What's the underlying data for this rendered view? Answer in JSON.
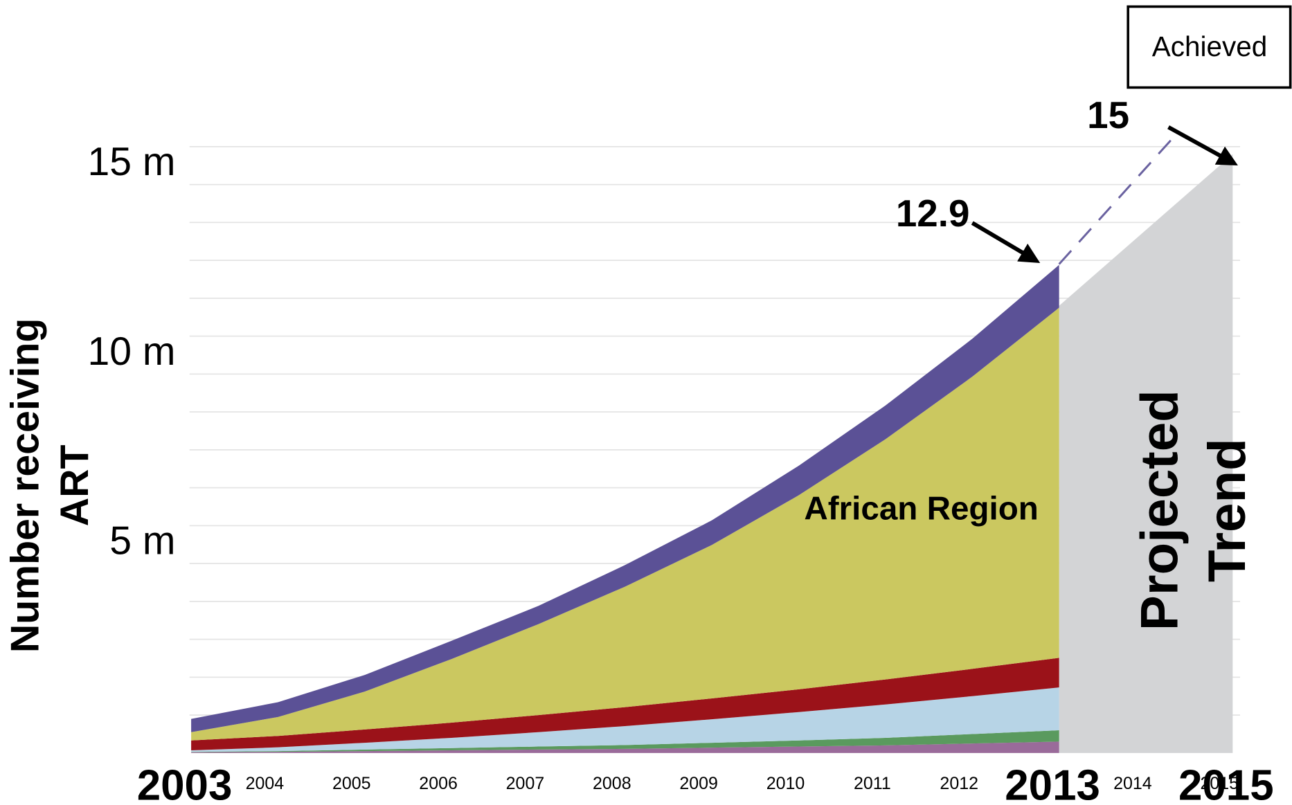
{
  "chart_data": {
    "type": "stacked_area",
    "x": [
      2003,
      2004,
      2005,
      2006,
      2007,
      2008,
      2009,
      2010,
      2011,
      2012,
      2013
    ],
    "series": [
      {
        "color": "#9a6b9a",
        "values": [
          0.02,
          0.03,
          0.05,
          0.07,
          0.09,
          0.11,
          0.14,
          0.17,
          0.2,
          0.25,
          0.3
        ]
      },
      {
        "color": "#5a9a5e",
        "values": [
          0.01,
          0.02,
          0.04,
          0.06,
          0.08,
          0.1,
          0.13,
          0.16,
          0.2,
          0.25,
          0.3
        ]
      },
      {
        "color": "#b7d4e6",
        "values": [
          0.04,
          0.1,
          0.18,
          0.27,
          0.38,
          0.5,
          0.62,
          0.75,
          0.88,
          1.0,
          1.13
        ]
      },
      {
        "color": "#9b1219",
        "values": [
          0.26,
          0.3,
          0.35,
          0.4,
          0.45,
          0.5,
          0.55,
          0.6,
          0.66,
          0.72,
          0.78
        ]
      },
      {
        "name": "African Region",
        "color": "#cbc860",
        "values": [
          0.22,
          0.5,
          1.0,
          1.68,
          2.4,
          3.18,
          4.05,
          5.12,
          6.34,
          7.71,
          9.24
        ]
      },
      {
        "color": "#5b5196",
        "values": [
          0.35,
          0.39,
          0.44,
          0.48,
          0.48,
          0.57,
          0.65,
          0.78,
          0.89,
          1.0,
          1.13
        ]
      }
    ],
    "projected": {
      "label": [
        "Projected",
        "Trend"
      ],
      "color": "#d3d4d6",
      "x": [
        2013,
        2015
      ],
      "values": [
        11.8,
        15.8
      ]
    },
    "target_line": {
      "color": "#6a62a0",
      "x": [
        2013,
        2014.3
      ],
      "values": [
        12.9,
        16.2
      ]
    },
    "annotations": [
      "12.9",
      "15"
    ],
    "legend_box": "Achieved",
    "ylabel": [
      "Number receiving",
      "ART"
    ],
    "xlim": [
      2003,
      2015
    ],
    "ylim": [
      0,
      16.5
    ],
    "yticks": [
      {
        "value": 5,
        "label": "5 m"
      },
      {
        "value": 10,
        "label": "10 m"
      },
      {
        "value": 15,
        "label": "15 m"
      }
    ],
    "grid_lines": [
      1,
      2,
      3,
      4,
      5,
      6,
      7,
      8,
      9,
      10,
      11,
      12,
      13,
      14,
      15,
      16
    ],
    "xticks": [
      2004,
      2005,
      2006,
      2007,
      2008,
      2009,
      2010,
      2011,
      2012,
      2014,
      2015
    ],
    "major_xticks": [
      2003,
      2013,
      2015
    ],
    "grid": true
  }
}
